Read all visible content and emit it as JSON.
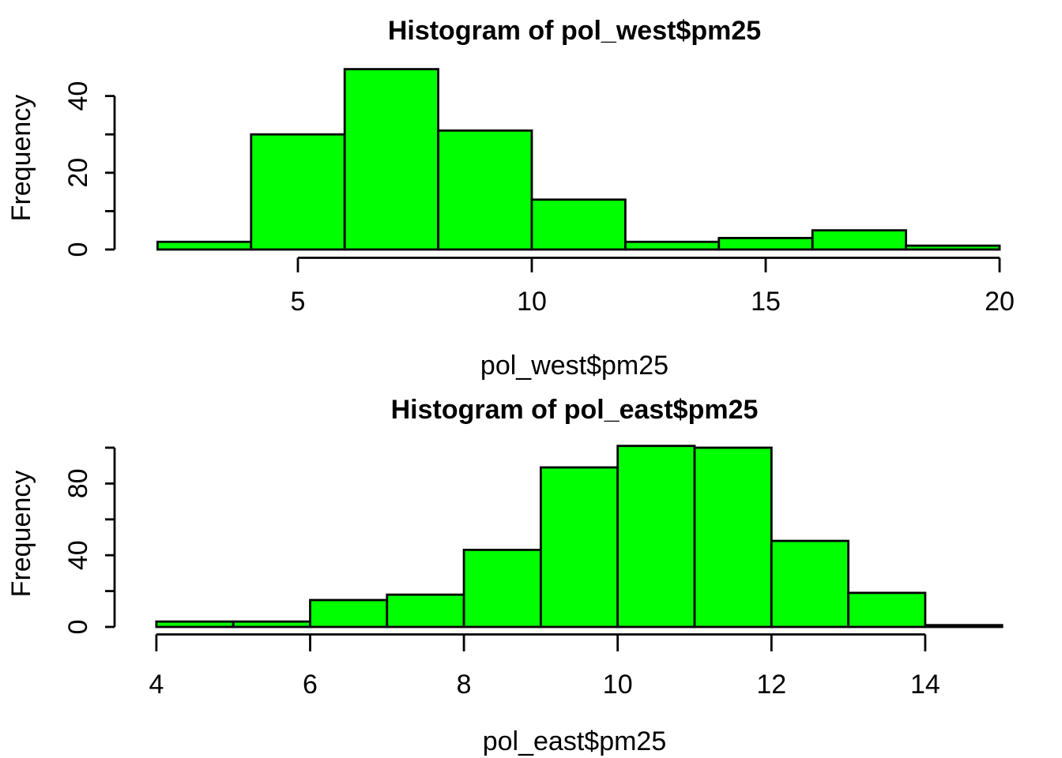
{
  "page": {
    "background": "#ffffff"
  },
  "chart_data": [
    {
      "type": "bar",
      "chart_kind": "histogram",
      "title": "Histogram of pol_west$pm25",
      "xlabel": "pol_west$pm25",
      "ylabel": "Frequency",
      "bin_edges": [
        2,
        4,
        6,
        8,
        10,
        12,
        14,
        16,
        18,
        20
      ],
      "values": [
        2,
        30,
        47,
        31,
        13,
        2,
        3,
        5,
        1
      ],
      "xticks": [
        5,
        10,
        15,
        20
      ],
      "xtick_labels": [
        "5",
        "10",
        "15",
        "20"
      ],
      "yticks": [
        0,
        10,
        20,
        30,
        40
      ],
      "ytick_labels": [
        "0",
        "",
        "20",
        "",
        "40"
      ],
      "xlim": [
        2,
        20
      ],
      "ylim": [
        0,
        47
      ],
      "grid": false,
      "bar_fill": "#00ff00",
      "bar_stroke": "#000000",
      "text_color": "#000000"
    },
    {
      "type": "bar",
      "chart_kind": "histogram",
      "title": "Histogram of pol_east$pm25",
      "xlabel": "pol_east$pm25",
      "ylabel": "Frequency",
      "bin_edges": [
        4,
        5,
        6,
        7,
        8,
        9,
        10,
        11,
        12,
        13,
        14,
        15
      ],
      "values": [
        3,
        3,
        15,
        18,
        43,
        89,
        101,
        100,
        48,
        19,
        1
      ],
      "xticks": [
        4,
        6,
        8,
        10,
        12,
        14
      ],
      "xtick_labels": [
        "4",
        "6",
        "8",
        "10",
        "12",
        "14"
      ],
      "yticks": [
        0,
        20,
        40,
        60,
        80,
        100
      ],
      "ytick_labels": [
        "0",
        "",
        "40",
        "",
        "80",
        ""
      ],
      "xlim": [
        4,
        15
      ],
      "ylim": [
        0,
        101
      ],
      "grid": false,
      "bar_fill": "#00ff00",
      "bar_stroke": "#000000",
      "text_color": "#000000"
    }
  ]
}
